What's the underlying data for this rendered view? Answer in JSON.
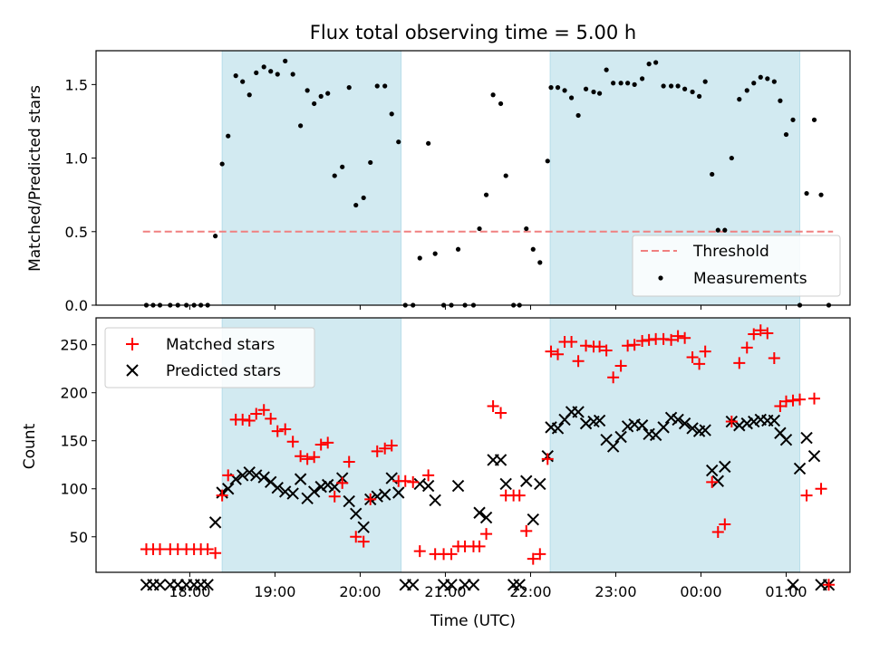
{
  "colors": {
    "band": "#add8e6",
    "matched": "#ff0000",
    "predicted": "#000000",
    "measurement": "#000000",
    "threshold": "#f08080"
  },
  "chart_data": [
    {
      "type": "scatter",
      "title": "Flux total observing time = 5.00 h",
      "xlabel": "",
      "ylabel": "Matched/Predicted stars",
      "ylim": [
        0,
        1.73
      ],
      "yticks": [
        "0.0",
        "0.5",
        "1.0",
        "1.5"
      ],
      "x_unit": "hours since 00:00 UTC of first day",
      "xlim": [
        16.9,
        25.75
      ],
      "shaded_spans": [
        [
          18.38,
          20.48
        ],
        [
          22.23,
          25.16
        ]
      ],
      "legend": {
        "position": "lower right",
        "entries": [
          "Threshold",
          "Measurements"
        ]
      },
      "threshold": {
        "name": "Threshold",
        "value": 0.5,
        "x_start": 17.45,
        "x_end": 25.55
      },
      "series": [
        {
          "name": "Measurements",
          "x": [
            17.49,
            17.57,
            17.65,
            17.77,
            17.86,
            17.96,
            18.05,
            18.13,
            18.21,
            18.3,
            18.38,
            18.45,
            18.54,
            18.62,
            18.7,
            18.78,
            18.87,
            18.95,
            19.03,
            19.12,
            19.21,
            19.3,
            19.38,
            19.46,
            19.54,
            19.62,
            19.7,
            19.79,
            19.87,
            19.95,
            20.04,
            20.12,
            20.2,
            20.29,
            20.37,
            20.45,
            20.53,
            20.62,
            20.7,
            20.8,
            20.88,
            20.98,
            21.07,
            21.15,
            21.23,
            21.33,
            21.4,
            21.48,
            21.56,
            21.65,
            21.71,
            21.8,
            21.87,
            21.95,
            22.03,
            22.11,
            22.2,
            22.24,
            22.32,
            22.4,
            22.48,
            22.56,
            22.65,
            22.74,
            22.81,
            22.89,
            22.97,
            23.06,
            23.14,
            23.22,
            23.31,
            23.39,
            23.47,
            23.56,
            23.65,
            23.73,
            23.81,
            23.9,
            23.98,
            24.05,
            24.13,
            24.2,
            24.28,
            24.36,
            24.45,
            24.54,
            24.62,
            24.7,
            24.78,
            24.86,
            24.93,
            25.0,
            25.08,
            25.16,
            25.24,
            25.33,
            25.41,
            25.5
          ],
          "y": [
            0,
            0,
            0,
            0,
            0,
            0,
            0,
            0,
            0,
            0.47,
            0.96,
            1.15,
            1.56,
            1.52,
            1.43,
            1.58,
            1.62,
            1.59,
            1.57,
            1.66,
            1.57,
            1.22,
            1.46,
            1.37,
            1.42,
            1.44,
            0.88,
            0.94,
            1.48,
            0.68,
            0.73,
            0.97,
            1.49,
            1.49,
            1.3,
            1.11,
            0,
            0,
            0.32,
            1.1,
            0.35,
            0,
            0,
            0.38,
            0,
            0,
            0.52,
            0.75,
            1.43,
            1.37,
            0.88,
            0,
            0,
            0.52,
            0.38,
            0.29,
            0.98,
            1.48,
            1.48,
            1.46,
            1.41,
            1.29,
            1.47,
            1.45,
            1.44,
            1.6,
            1.51,
            1.51,
            1.51,
            1.5,
            1.54,
            1.64,
            1.65,
            1.49,
            1.49,
            1.49,
            1.47,
            1.45,
            1.42,
            1.52,
            0.89,
            0.51,
            0.51,
            1.0,
            1.4,
            1.46,
            1.51,
            1.55,
            1.54,
            1.52,
            1.39,
            1.16,
            1.26,
            0,
            0.76,
            1.26,
            0.75,
            0
          ]
        }
      ]
    },
    {
      "type": "scatter",
      "title": "",
      "xlabel": "Time (UTC)",
      "ylabel": "Count",
      "ylim": [
        13,
        278
      ],
      "yticks": [
        "50",
        "100",
        "150",
        "200",
        "250"
      ],
      "x_unit": "hours since 00:00 UTC of first day",
      "xlim": [
        16.9,
        25.75
      ],
      "xticks": [
        "18:00",
        "19:00",
        "20:00",
        "21:00",
        "22:00",
        "23:00",
        "00:00",
        "01:00"
      ],
      "shaded_spans": [
        [
          18.38,
          20.48
        ],
        [
          22.23,
          25.16
        ]
      ],
      "legend": {
        "position": "upper left",
        "entries": [
          "Matched stars",
          "Predicted stars"
        ]
      },
      "series": [
        {
          "name": "Matched stars",
          "marker": "+",
          "x": [
            17.49,
            17.57,
            17.65,
            17.77,
            17.86,
            17.96,
            18.05,
            18.13,
            18.21,
            18.3,
            18.38,
            18.45,
            18.54,
            18.62,
            18.7,
            18.78,
            18.87,
            18.95,
            19.03,
            19.12,
            19.21,
            19.3,
            19.38,
            19.46,
            19.54,
            19.62,
            19.7,
            19.79,
            19.87,
            19.95,
            20.04,
            20.12,
            20.2,
            20.29,
            20.37,
            20.45,
            20.53,
            20.62,
            20.7,
            20.8,
            20.88,
            20.98,
            21.07,
            21.15,
            21.23,
            21.33,
            21.4,
            21.48,
            21.56,
            21.65,
            21.71,
            21.8,
            21.87,
            21.95,
            22.03,
            22.11,
            22.2,
            22.24,
            22.32,
            22.4,
            22.48,
            22.56,
            22.65,
            22.74,
            22.81,
            22.89,
            22.97,
            23.06,
            23.14,
            23.22,
            23.31,
            23.39,
            23.47,
            23.56,
            23.65,
            23.73,
            23.81,
            23.9,
            23.98,
            24.05,
            24.13,
            24.2,
            24.28,
            24.36,
            24.45,
            24.54,
            24.62,
            24.7,
            24.78,
            24.86,
            24.93,
            25.0,
            25.08,
            25.16,
            25.24,
            25.33,
            25.41,
            25.5
          ],
          "y": [
            37,
            37,
            37,
            37,
            37,
            37,
            37,
            37,
            37,
            33,
            93,
            114,
            172,
            172,
            171,
            178,
            182,
            173,
            160,
            162,
            149,
            134,
            131,
            133,
            146,
            148,
            92,
            106,
            128,
            50,
            45,
            89,
            139,
            142,
            145,
            108,
            108,
            107,
            35,
            114,
            32,
            32,
            32,
            40,
            40,
            40,
            40,
            53,
            186,
            179,
            93,
            93,
            93,
            56,
            27,
            32,
            131,
            243,
            240,
            253,
            253,
            233,
            249,
            248,
            248,
            244,
            216,
            228,
            249,
            250,
            254,
            255,
            256,
            256,
            255,
            259,
            257,
            237,
            230,
            243,
            107,
            55,
            63,
            170,
            231,
            247,
            261,
            265,
            262,
            236,
            186,
            191,
            192,
            193,
            93,
            194,
            100,
            0
          ]
        },
        {
          "name": "Predicted stars",
          "marker": "x",
          "x": [
            17.49,
            17.57,
            17.65,
            17.77,
            17.86,
            17.96,
            18.05,
            18.13,
            18.21,
            18.3,
            18.38,
            18.45,
            18.54,
            18.62,
            18.7,
            18.78,
            18.87,
            18.95,
            19.03,
            19.12,
            19.21,
            19.3,
            19.38,
            19.46,
            19.54,
            19.62,
            19.7,
            19.79,
            19.87,
            19.95,
            20.04,
            20.12,
            20.2,
            20.29,
            20.37,
            20.45,
            20.53,
            20.62,
            20.7,
            20.8,
            20.88,
            20.98,
            21.07,
            21.15,
            21.23,
            21.33,
            21.4,
            21.48,
            21.56,
            21.65,
            21.71,
            21.8,
            21.87,
            21.95,
            22.03,
            22.11,
            22.2,
            22.24,
            22.32,
            22.4,
            22.48,
            22.56,
            22.65,
            22.74,
            22.81,
            22.89,
            22.97,
            23.06,
            23.14,
            23.22,
            23.31,
            23.39,
            23.47,
            23.56,
            23.65,
            23.73,
            23.81,
            23.9,
            23.98,
            24.05,
            24.13,
            24.2,
            24.28,
            24.36,
            24.45,
            24.54,
            24.62,
            24.7,
            24.78,
            24.86,
            24.93,
            25.0,
            25.08,
            25.16,
            25.24,
            25.33,
            25.41,
            25.5
          ],
          "y": [
            0,
            0,
            0,
            0,
            0,
            0,
            0,
            0,
            0,
            65,
            96,
            100,
            110,
            114,
            117,
            114,
            112,
            107,
            101,
            97,
            95,
            110,
            90,
            97,
            102,
            104,
            102,
            111,
            87,
            74,
            60,
            89,
            92,
            94,
            111,
            96,
            0,
            0,
            105,
            103,
            88,
            0,
            0,
            103,
            0,
            0,
            75,
            70,
            130,
            130,
            105,
            0,
            0,
            108,
            68,
            105,
            134,
            164,
            163,
            172,
            180,
            180,
            168,
            170,
            171,
            151,
            144,
            154,
            165,
            167,
            166,
            157,
            156,
            164,
            174,
            172,
            168,
            163,
            160,
            161,
            119,
            108,
            123,
            170,
            166,
            168,
            170,
            172,
            171,
            171,
            158,
            151,
            0,
            121,
            153,
            134,
            0,
            0
          ]
        }
      ]
    }
  ]
}
